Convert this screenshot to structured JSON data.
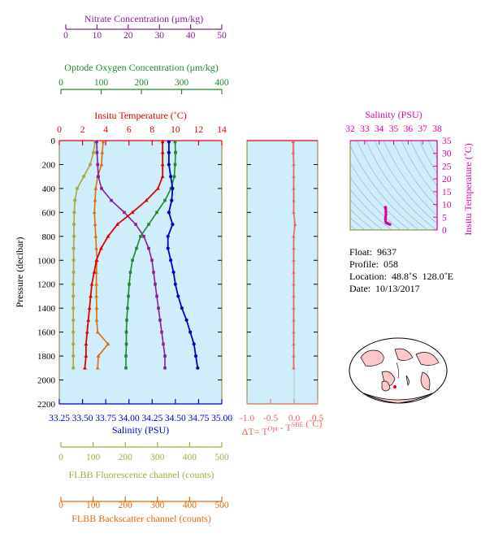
{
  "colors": {
    "nitrate": "#8b1a9b",
    "oxygen": "#1a8a2e",
    "temperature": "#e00000",
    "salinity": "#0000c8",
    "fluorescence": "#a8a840",
    "backscatter": "#e06a10",
    "delta": "#f06060",
    "profile_bg": "#cdeefa",
    "tsdiagram": "#e000a0",
    "map_land": "#ffc8c8"
  },
  "axes": {
    "nitrate": {
      "label": "Nitrate Concentration (μm/kg)",
      "ticks": [
        "0",
        "10",
        "20",
        "30",
        "40",
        "50"
      ]
    },
    "oxygen": {
      "label": "Optode Oxygen Concentration (μm/kg)",
      "ticks": [
        "0",
        "100",
        "200",
        "300",
        "400"
      ]
    },
    "temperature": {
      "label": "Insitu Temperature (˚C)",
      "ticks": [
        "0",
        "2",
        "4",
        "6",
        "8",
        "10",
        "12",
        "14"
      ]
    },
    "pressure": {
      "label": "Pressure (decibar)",
      "ticks": [
        "0",
        "200",
        "400",
        "600",
        "800",
        "1000",
        "1200",
        "1400",
        "1600",
        "1800",
        "2000",
        "2200"
      ]
    },
    "salinity": {
      "label": "Salinity (PSU)",
      "ticks": [
        "33.25",
        "33.50",
        "33.75",
        "34.00",
        "34.25",
        "34.50",
        "34.75",
        "35.00"
      ]
    },
    "fluorescence": {
      "label": "FLBB Fluorescence channel (counts)",
      "ticks": [
        "0",
        "100",
        "200",
        "300",
        "400",
        "500"
      ]
    },
    "backscatter": {
      "label": "FLBB Backscatter channel (counts)",
      "ticks": [
        "0",
        "100",
        "200",
        "300",
        "400",
        "500"
      ]
    },
    "delta": {
      "label_main": "ΔT= T",
      "label_sup1": "Opt",
      "label_mid": " - T",
      "label_sup2": "SBE",
      "label_end": " (˚C)",
      "ticks": [
        "-1.0",
        "-0.5",
        "0.0",
        "0.5"
      ]
    },
    "ts_salinity": {
      "label": "Salinity (PSU)",
      "ticks": [
        "32",
        "33",
        "34",
        "35",
        "36",
        "37",
        "38"
      ]
    },
    "ts_temperature": {
      "label": "Insitu Temperature (˚C)",
      "ticks": [
        "0",
        "5",
        "10",
        "15",
        "20",
        "25",
        "30",
        "35"
      ]
    }
  },
  "info": {
    "float": "Float:  9637",
    "profile": "Profile:  058",
    "location": "Location:  48.8˚S  128.0˚E",
    "date": "Date:  10/13/2017"
  },
  "chart_data": [
    {
      "type": "line",
      "y_axis": "Pressure (decibar)",
      "ylim": [
        2200,
        0
      ],
      "series": [
        {
          "name": "Insitu Temperature (˚C)",
          "axis": "temperature",
          "xlim": [
            0,
            14
          ],
          "pressure": [
            10,
            100,
            200,
            300,
            400,
            500,
            600,
            700,
            800,
            900,
            1000,
            1100,
            1200,
            1300,
            1400,
            1500,
            1600,
            1700,
            1800,
            1900
          ],
          "values": [
            8.9,
            8.9,
            8.9,
            8.9,
            8.5,
            7.5,
            6.3,
            5.0,
            4.2,
            3.6,
            3.2,
            3.0,
            2.8,
            2.7,
            2.6,
            2.5,
            2.4,
            2.3,
            2.3,
            2.2
          ]
        },
        {
          "name": "Salinity (PSU)",
          "axis": "salinity",
          "xlim": [
            33.25,
            35.0
          ],
          "pressure": [
            10,
            100,
            200,
            300,
            400,
            500,
            600,
            700,
            800,
            900,
            1000,
            1100,
            1200,
            1300,
            1400,
            1500,
            1600,
            1700,
            1800,
            1900
          ],
          "values": [
            34.43,
            34.43,
            34.43,
            34.45,
            34.47,
            34.46,
            34.43,
            34.47,
            34.42,
            34.42,
            34.45,
            34.48,
            34.5,
            34.53,
            34.57,
            34.62,
            34.66,
            34.7,
            34.72,
            34.74
          ]
        },
        {
          "name": "Nitrate Concentration (μm/kg)",
          "axis": "nitrate",
          "xlim": [
            0,
            50
          ],
          "pressure": [
            10,
            100,
            200,
            300,
            400,
            500,
            600,
            700,
            800,
            900,
            1000,
            1100,
            1200,
            1300,
            1400,
            1500,
            1600,
            1700,
            1800,
            1900
          ],
          "values": [
            11.5,
            11.6,
            11.8,
            12.0,
            13.0,
            16.0,
            20.0,
            23.5,
            26.0,
            27.5,
            28.5,
            29.0,
            29.5,
            30.0,
            30.5,
            31.0,
            31.5,
            32.0,
            32.5,
            32.5
          ]
        },
        {
          "name": "Optode Oxygen Concentration (μm/kg)",
          "axis": "oxygen",
          "xlim": [
            0,
            400
          ],
          "pressure": [
            10,
            100,
            200,
            300,
            400,
            500,
            600,
            700,
            800,
            900,
            1000,
            1100,
            1200,
            1300,
            1400,
            1500,
            1600,
            1700,
            1800,
            1900
          ],
          "values": [
            285,
            286,
            285,
            283,
            275,
            260,
            240,
            220,
            200,
            190,
            180,
            175,
            172,
            170,
            168,
            166,
            165,
            165,
            164,
            164
          ]
        },
        {
          "name": "FLBB Fluorescence channel (counts)",
          "axis": "fluorescence",
          "xlim": [
            0,
            500
          ],
          "pressure": [
            10,
            100,
            200,
            300,
            400,
            500,
            600,
            700,
            800,
            900,
            1000,
            1100,
            1200,
            1300,
            1400,
            1500,
            1600,
            1700,
            1800,
            1900
          ],
          "values": [
            110,
            105,
            95,
            75,
            55,
            48,
            46,
            45,
            45,
            44,
            44,
            44,
            43,
            43,
            43,
            43,
            43,
            43,
            43,
            43
          ]
        },
        {
          "name": "FLBB Backscatter channel (counts)",
          "axis": "backscatter",
          "xlim": [
            0,
            500
          ],
          "pressure": [
            10,
            100,
            200,
            300,
            400,
            500,
            600,
            700,
            800,
            900,
            1000,
            1100,
            1200,
            1300,
            1400,
            1500,
            1600,
            1700,
            1800,
            1900
          ],
          "values": [
            135,
            132,
            130,
            118,
            112,
            110,
            108,
            110,
            112,
            114,
            116,
            114,
            114,
            114,
            115,
            115,
            118,
            150,
            120,
            118
          ]
        }
      ]
    },
    {
      "type": "line",
      "axis": "delta",
      "xlim": [
        -1.0,
        0.5
      ],
      "ylim": [
        2200,
        0
      ],
      "pressure": [
        10,
        100,
        200,
        300,
        400,
        500,
        600,
        700,
        800,
        900,
        1000,
        1100,
        1200,
        1300,
        1400,
        1500,
        1600,
        1700,
        1800,
        1900
      ],
      "values": [
        -0.02,
        -0.02,
        -0.01,
        -0.01,
        -0.01,
        -0.01,
        -0.01,
        0.02,
        -0.01,
        -0.01,
        -0.01,
        -0.01,
        -0.01,
        -0.01,
        -0.01,
        -0.01,
        -0.01,
        -0.01,
        -0.01,
        -0.01
      ]
    },
    {
      "type": "scatter",
      "axis": "tsdiagram",
      "xlim": [
        32,
        38
      ],
      "ylim": [
        0,
        35
      ],
      "x": [
        34.43,
        34.43,
        34.44,
        34.45,
        34.46,
        34.47,
        34.44,
        34.43,
        34.45,
        34.5,
        34.6,
        34.74
      ],
      "y": [
        8.9,
        8.8,
        8.6,
        8.2,
        7.0,
        6.0,
        5.0,
        4.2,
        3.3,
        2.8,
        2.5,
        2.2
      ]
    }
  ]
}
